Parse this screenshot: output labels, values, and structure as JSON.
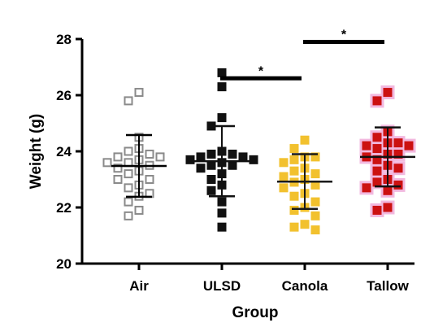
{
  "chart_data": {
    "type": "scatter",
    "xlabel": "Group",
    "ylabel": "Weight (g)",
    "ylim": [
      20,
      28
    ],
    "yticks": [
      "20",
      "22",
      "24",
      "26",
      "28"
    ],
    "categories": [
      "Air",
      "ULSD",
      "Canola",
      "Tallow"
    ],
    "series": [
      {
        "category": "Air",
        "marker": "open-square",
        "color": "#8a8a8a",
        "mean": 23.48,
        "sd_upper": 24.58,
        "sd_lower": 22.38,
        "points": [
          26.1,
          25.8,
          24.5,
          24.1,
          24.0,
          23.9,
          23.8,
          23.8,
          23.7,
          23.6,
          23.6,
          23.5,
          23.4,
          23.3,
          23.2,
          23.0,
          23.0,
          22.8,
          22.7,
          22.5,
          22.4,
          22.2,
          21.9,
          21.7
        ]
      },
      {
        "category": "ULSD",
        "marker": "filled-square",
        "color": "#111111",
        "mean": 23.65,
        "sd_upper": 24.9,
        "sd_lower": 22.4,
        "points": [
          26.8,
          26.3,
          25.2,
          24.9,
          24.0,
          23.9,
          23.9,
          23.8,
          23.8,
          23.7,
          23.7,
          23.6,
          23.5,
          23.5,
          23.4,
          23.2,
          23.0,
          22.8,
          22.6,
          22.2,
          21.8,
          21.3
        ]
      },
      {
        "category": "Canola",
        "marker": "filled-square",
        "color": "#f2c12e",
        "mean": 22.92,
        "sd_upper": 23.9,
        "sd_lower": 21.95,
        "points": [
          24.4,
          24.1,
          23.8,
          23.8,
          23.7,
          23.6,
          23.4,
          23.3,
          23.2,
          23.1,
          23.0,
          22.9,
          22.8,
          22.7,
          22.5,
          22.4,
          22.2,
          22.0,
          21.9,
          21.7,
          21.4,
          21.3,
          21.2
        ]
      },
      {
        "category": "Tallow",
        "marker": "filled-square",
        "color": "#cc1111",
        "halo": "#f2b8df",
        "mean": 23.8,
        "sd_upper": 24.85,
        "sd_lower": 22.75,
        "points": [
          26.1,
          25.8,
          24.7,
          24.5,
          24.3,
          24.3,
          24.2,
          24.2,
          24.1,
          23.9,
          23.9,
          23.8,
          23.7,
          23.5,
          23.4,
          23.3,
          23.0,
          22.9,
          22.8,
          22.7,
          22.6,
          22.0,
          21.9
        ]
      }
    ],
    "significance": [
      {
        "from": "ULSD",
        "to": "Canola",
        "label": "*",
        "y": 26.6
      },
      {
        "from": "Canola",
        "to": "Tallow",
        "label": "*",
        "y": 27.9
      }
    ]
  }
}
